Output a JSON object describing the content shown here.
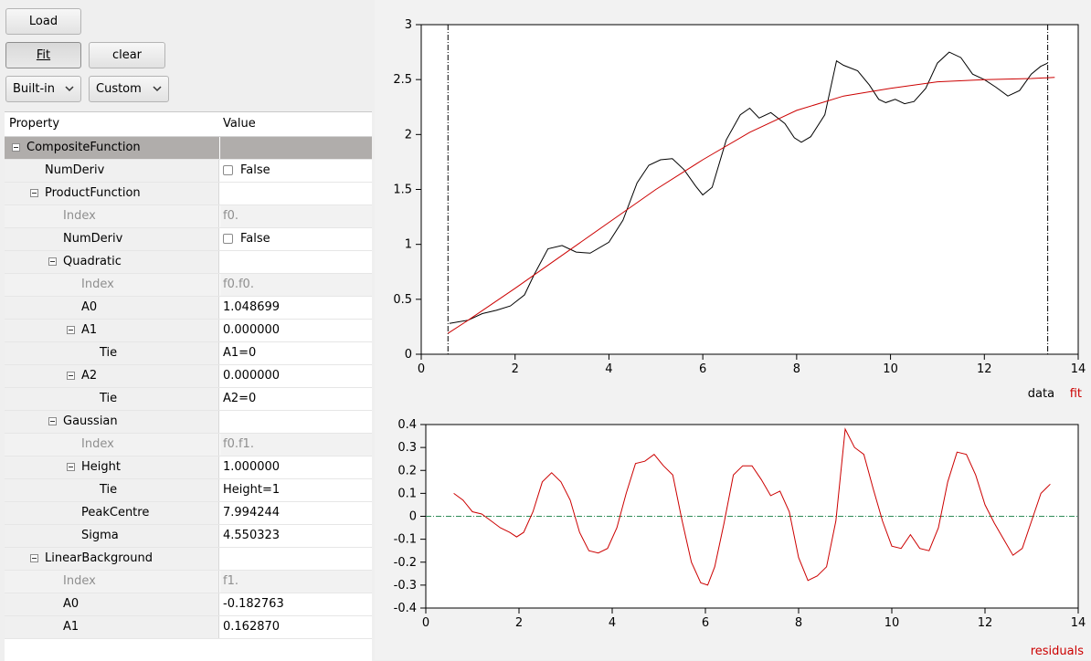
{
  "buttons": {
    "load": "Load",
    "fit": "Fit",
    "clear": "clear"
  },
  "combos": {
    "builtin": "Built-in",
    "custom": "Custom"
  },
  "tree": {
    "header": {
      "property": "Property",
      "value": "Value"
    },
    "rows": [
      {
        "label": "CompositeFunction",
        "value": "",
        "toggle": "collapse"
      },
      {
        "label": "NumDeriv",
        "value": "False",
        "checkbox": true
      },
      {
        "label": "ProductFunction",
        "value": "",
        "toggle": "collapse"
      },
      {
        "label": "Index",
        "value": "f0."
      },
      {
        "label": "NumDeriv",
        "value": "False",
        "checkbox": true
      },
      {
        "label": "Quadratic",
        "value": "",
        "toggle": "collapse"
      },
      {
        "label": "Index",
        "value": "f0.f0."
      },
      {
        "label": "A0",
        "value": "1.048699"
      },
      {
        "label": "A1",
        "value": "0.000000",
        "toggle": "collapse"
      },
      {
        "label": "Tie",
        "value": "A1=0"
      },
      {
        "label": "A2",
        "value": "0.000000",
        "toggle": "collapse"
      },
      {
        "label": "Tie",
        "value": "A2=0"
      },
      {
        "label": "Gaussian",
        "value": "",
        "toggle": "collapse"
      },
      {
        "label": "Index",
        "value": "f0.f1."
      },
      {
        "label": "Height",
        "value": "1.000000",
        "toggle": "collapse"
      },
      {
        "label": "Tie",
        "value": "Height=1"
      },
      {
        "label": "PeakCentre",
        "value": "7.994244"
      },
      {
        "label": "Sigma",
        "value": "4.550323"
      },
      {
        "label": "LinearBackground",
        "value": "",
        "toggle": "collapse"
      },
      {
        "label": "Index",
        "value": "f1."
      },
      {
        "label": "A0",
        "value": "-0.182763"
      },
      {
        "label": "A1",
        "value": "0.162870"
      }
    ]
  },
  "chart_data": [
    {
      "type": "line",
      "xlim": [
        0,
        14
      ],
      "ylim": [
        0,
        3
      ],
      "xticks": [
        "0",
        "2",
        "4",
        "6",
        "8",
        "10",
        "12",
        "14"
      ],
      "yticks": [
        "0",
        "0.5",
        "1",
        "1.5",
        "2",
        "2.5",
        "3"
      ],
      "legend": [
        "data",
        "fit"
      ],
      "legend_placement": "bottom-right",
      "range_markers": [
        0.57,
        13.35
      ],
      "series": [
        {
          "name": "data",
          "color": "#000000",
          "x": [
            0.6,
            1.0,
            1.3,
            1.6,
            1.9,
            2.2,
            2.4,
            2.7,
            3.0,
            3.3,
            3.6,
            4.0,
            4.3,
            4.6,
            4.85,
            5.1,
            5.35,
            5.6,
            5.85,
            6.0,
            6.2,
            6.5,
            6.8,
            7.0,
            7.2,
            7.45,
            7.75,
            7.95,
            8.1,
            8.3,
            8.6,
            8.85,
            9.0,
            9.3,
            9.55,
            9.75,
            9.9,
            10.1,
            10.3,
            10.5,
            10.75,
            11.0,
            11.25,
            11.5,
            11.75,
            12.0,
            12.25,
            12.5,
            12.75,
            13.0,
            13.2,
            13.35
          ],
          "y": [
            0.28,
            0.31,
            0.37,
            0.4,
            0.44,
            0.54,
            0.72,
            0.96,
            0.99,
            0.93,
            0.92,
            1.02,
            1.22,
            1.56,
            1.72,
            1.77,
            1.78,
            1.68,
            1.53,
            1.45,
            1.52,
            1.95,
            2.18,
            2.24,
            2.15,
            2.2,
            2.1,
            1.97,
            1.93,
            1.98,
            2.18,
            2.67,
            2.63,
            2.58,
            2.45,
            2.32,
            2.29,
            2.32,
            2.28,
            2.3,
            2.42,
            2.65,
            2.75,
            2.7,
            2.55,
            2.5,
            2.43,
            2.35,
            2.4,
            2.55,
            2.62,
            2.65
          ]
        },
        {
          "name": "fit",
          "color": "#cc0000",
          "x": [
            0.57,
            1.0,
            2.0,
            3.0,
            4.0,
            5.0,
            6.0,
            7.0,
            8.0,
            9.0,
            10.0,
            11.0,
            12.0,
            13.0,
            13.5
          ],
          "y": [
            0.19,
            0.31,
            0.6,
            0.9,
            1.2,
            1.5,
            1.77,
            2.02,
            2.22,
            2.35,
            2.42,
            2.48,
            2.5,
            2.51,
            2.52
          ]
        }
      ]
    },
    {
      "type": "line",
      "xlim": [
        0,
        14
      ],
      "ylim": [
        -0.4,
        0.4
      ],
      "xticks": [
        "0",
        "2",
        "4",
        "6",
        "8",
        "10",
        "12",
        "14"
      ],
      "yticks": [
        "0.4",
        "0.3",
        "0.2",
        "0.1",
        "0",
        "-0.1",
        "-0.2",
        "-0.3",
        "-0.4"
      ],
      "legend": [
        "residuals"
      ],
      "legend_placement": "bottom-right",
      "zero_line_color": "#2e8b57",
      "series": [
        {
          "name": "residuals",
          "color": "#cc0000",
          "x": [
            0.6,
            0.8,
            1.0,
            1.2,
            1.4,
            1.6,
            1.8,
            1.95,
            2.1,
            2.3,
            2.5,
            2.7,
            2.9,
            3.1,
            3.3,
            3.5,
            3.7,
            3.9,
            4.1,
            4.3,
            4.5,
            4.7,
            4.9,
            5.1,
            5.3,
            5.5,
            5.7,
            5.9,
            6.05,
            6.2,
            6.4,
            6.6,
            6.8,
            7.0,
            7.2,
            7.4,
            7.6,
            7.8,
            8.0,
            8.2,
            8.4,
            8.6,
            8.8,
            9.0,
            9.2,
            9.4,
            9.6,
            9.8,
            10.0,
            10.2,
            10.4,
            10.6,
            10.8,
            11.0,
            11.2,
            11.4,
            11.6,
            11.8,
            12.0,
            12.2,
            12.4,
            12.6,
            12.8,
            13.0,
            13.2,
            13.4
          ],
          "y": [
            0.1,
            0.07,
            0.02,
            0.01,
            -0.02,
            -0.05,
            -0.07,
            -0.09,
            -0.07,
            0.02,
            0.15,
            0.19,
            0.15,
            0.07,
            -0.07,
            -0.15,
            -0.16,
            -0.14,
            -0.05,
            0.1,
            0.23,
            0.24,
            0.27,
            0.22,
            0.18,
            -0.02,
            -0.2,
            -0.29,
            -0.3,
            -0.22,
            -0.03,
            0.18,
            0.22,
            0.22,
            0.16,
            0.09,
            0.11,
            0.02,
            -0.18,
            -0.28,
            -0.26,
            -0.22,
            -0.02,
            0.38,
            0.3,
            0.27,
            0.12,
            -0.02,
            -0.13,
            -0.14,
            -0.08,
            -0.14,
            -0.15,
            -0.05,
            0.15,
            0.28,
            0.27,
            0.18,
            0.05,
            -0.03,
            -0.1,
            -0.17,
            -0.14,
            -0.02,
            0.1,
            0.14
          ]
        }
      ]
    }
  ]
}
